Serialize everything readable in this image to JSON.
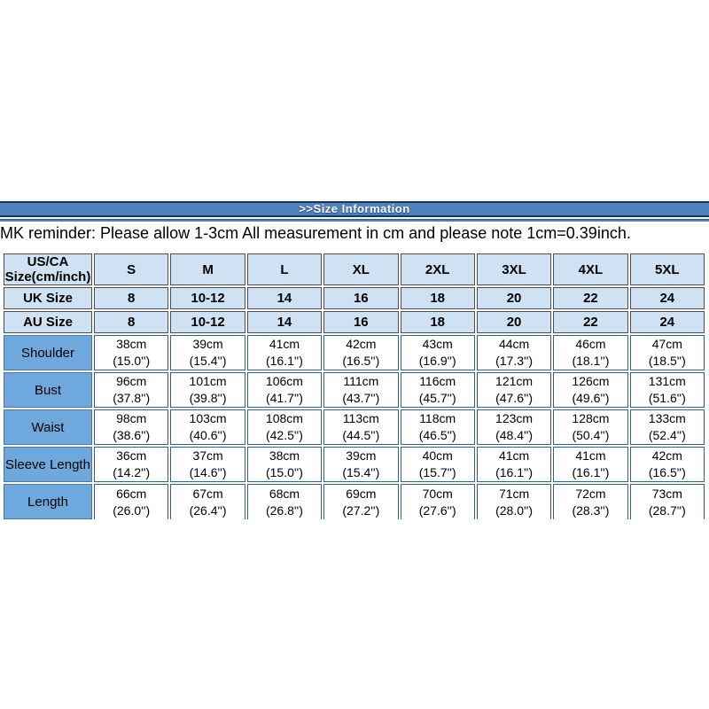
{
  "banner": {
    "title": ">>Size Information"
  },
  "reminder": "MK reminder: Please allow 1-3cm All measurement in cm and please note 1cm=0.39inch.",
  "colors": {
    "banner_bg": "#4f81bd",
    "banner_border": "#17375e",
    "header_row_bg": "#cfe2f3",
    "label_cell_bg": "#6fa8dc",
    "data_cell_bg": "#ffffff",
    "text": "#000000"
  },
  "table": {
    "corner_header_lines": [
      "US/CA",
      "Size(cm/inch)"
    ],
    "size_columns": [
      "S",
      "M",
      "L",
      "XL",
      "2XL",
      "3XL",
      "4XL",
      "5XL"
    ],
    "size_rows": [
      {
        "label": "UK Size",
        "values": [
          "8",
          "10-12",
          "14",
          "16",
          "18",
          "20",
          "22",
          "24"
        ]
      },
      {
        "label": "AU Size",
        "values": [
          "8",
          "10-12",
          "14",
          "16",
          "18",
          "20",
          "22",
          "24"
        ]
      }
    ],
    "measurement_rows": [
      {
        "label": "Shoulder",
        "values": [
          {
            "cm": "38cm",
            "inch": "(15.0'')"
          },
          {
            "cm": "39cm",
            "inch": "(15.4'')"
          },
          {
            "cm": "41cm",
            "inch": "(16.1'')"
          },
          {
            "cm": "42cm",
            "inch": "(16.5'')"
          },
          {
            "cm": "43cm",
            "inch": "(16.9'')"
          },
          {
            "cm": "44cm",
            "inch": "(17.3'')"
          },
          {
            "cm": "46cm",
            "inch": "(18.1'')"
          },
          {
            "cm": "47cm",
            "inch": "(18.5'')"
          }
        ]
      },
      {
        "label": "Bust",
        "values": [
          {
            "cm": "96cm",
            "inch": "(37.8'')"
          },
          {
            "cm": "101cm",
            "inch": "(39.8'')"
          },
          {
            "cm": "106cm",
            "inch": "(41.7'')"
          },
          {
            "cm": "111cm",
            "inch": "(43.7'')"
          },
          {
            "cm": "116cm",
            "inch": "(45.7'')"
          },
          {
            "cm": "121cm",
            "inch": "(47.6'')"
          },
          {
            "cm": "126cm",
            "inch": "(49.6'')"
          },
          {
            "cm": "131cm",
            "inch": "(51.6'')"
          }
        ]
      },
      {
        "label": "Waist",
        "values": [
          {
            "cm": "98cm",
            "inch": "(38.6'')"
          },
          {
            "cm": "103cm",
            "inch": "(40.6'')"
          },
          {
            "cm": "108cm",
            "inch": "(42.5'')"
          },
          {
            "cm": "113cm",
            "inch": "(44.5'')"
          },
          {
            "cm": "118cm",
            "inch": "(46.5'')"
          },
          {
            "cm": "123cm",
            "inch": "(48.4'')"
          },
          {
            "cm": "128cm",
            "inch": "(50.4'')"
          },
          {
            "cm": "133cm",
            "inch": "(52.4'')"
          }
        ]
      },
      {
        "label": "Sleeve Length",
        "values": [
          {
            "cm": "36cm",
            "inch": "(14.2'')"
          },
          {
            "cm": "37cm",
            "inch": "(14.6'')"
          },
          {
            "cm": "38cm",
            "inch": "(15.0'')"
          },
          {
            "cm": "39cm",
            "inch": "(15.4'')"
          },
          {
            "cm": "40cm",
            "inch": "(15.7'')"
          },
          {
            "cm": "41cm",
            "inch": "(16.1'')"
          },
          {
            "cm": "41cm",
            "inch": "(16.1'')"
          },
          {
            "cm": "42cm",
            "inch": "(16.5'')"
          }
        ]
      },
      {
        "label": "Length",
        "values": [
          {
            "cm": "66cm",
            "inch": "(26.0'')"
          },
          {
            "cm": "67cm",
            "inch": "(26.4'')"
          },
          {
            "cm": "68cm",
            "inch": "(26.8'')"
          },
          {
            "cm": "69cm",
            "inch": "(27.2'')"
          },
          {
            "cm": "70cm",
            "inch": "(27.6'')"
          },
          {
            "cm": "71cm",
            "inch": "(28.0'')"
          },
          {
            "cm": "72cm",
            "inch": "(28.3'')"
          },
          {
            "cm": "73cm",
            "inch": "(28.7'')"
          }
        ]
      }
    ]
  }
}
